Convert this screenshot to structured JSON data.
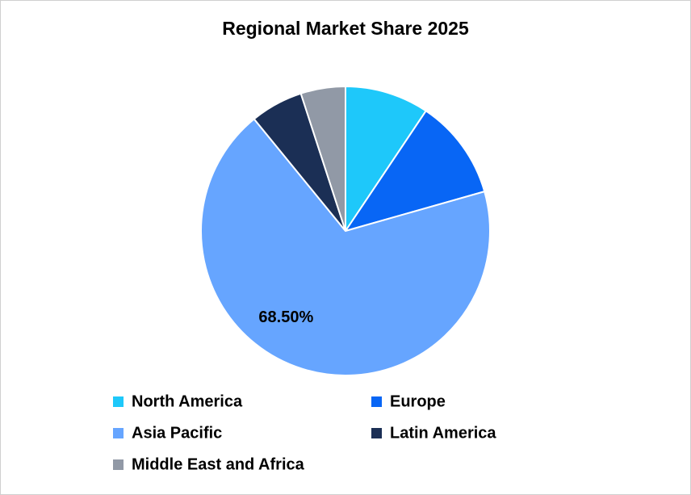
{
  "chart_data": {
    "type": "pie",
    "title": "Regional Market Share 2025",
    "categories": [
      "North America",
      "Europe",
      "Asia Pacific",
      "Latin America",
      "Middle East and Africa"
    ],
    "values": [
      9.4,
      11.2,
      68.5,
      5.9,
      5.0
    ],
    "value_labels": [
      null,
      null,
      "68.50%",
      null,
      null
    ],
    "colors": [
      "#1ec8fa",
      "#0866f5",
      "#66a5ff",
      "#1b2f55",
      "#9199a6"
    ],
    "legend": "bottom"
  }
}
